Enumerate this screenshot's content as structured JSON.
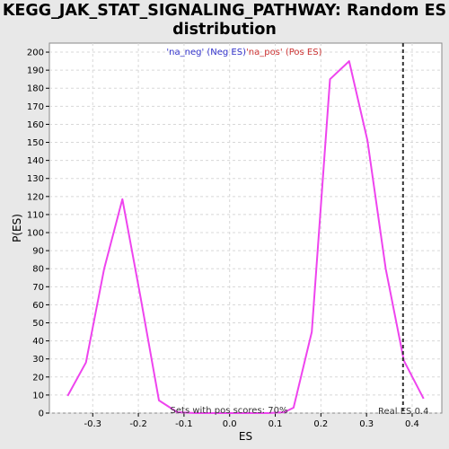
{
  "chart_data": {
    "type": "line",
    "title_line1": "KEGG_JAK_STAT_SIGNALING_PATHWAY: Random ES",
    "title_line2": "distribution",
    "xlabel": "ES",
    "ylabel": "P(ES)",
    "xlim": [
      -0.395,
      0.465
    ],
    "ylim": [
      0,
      205
    ],
    "x_ticks": [
      -0.3,
      -0.2,
      -0.1,
      0.0,
      0.1,
      0.2,
      0.3,
      0.4
    ],
    "x_tick_labels": [
      "-0.3",
      "-0.2",
      "-0.1",
      "0.0",
      "0.1",
      "0.2",
      "0.3",
      "0.4"
    ],
    "y_ticks": [
      0,
      10,
      20,
      30,
      40,
      50,
      60,
      70,
      80,
      90,
      100,
      110,
      120,
      130,
      140,
      150,
      160,
      170,
      180,
      190,
      200
    ],
    "grid": true,
    "legend": [
      {
        "label": "'na_neg' (Neg ES)",
        "color": "#3333cc"
      },
      {
        "label": "'na_pos' (Pos ES)",
        "color": "#cc3333"
      }
    ],
    "series": [
      {
        "color": "#ee44ee",
        "x": [
          -0.355,
          -0.315,
          -0.275,
          -0.235,
          -0.195,
          -0.155,
          -0.115,
          -0.075,
          -0.035,
          0.005,
          0.045,
          0.085,
          0.12,
          0.14,
          0.18,
          0.22,
          0.262,
          0.302,
          0.342,
          0.382,
          0.425
        ],
        "y": [
          9.5,
          28,
          80,
          118.5,
          64,
          7,
          0.5,
          0,
          0,
          0,
          0,
          0,
          0.5,
          3,
          45,
          185,
          195,
          151,
          80,
          29,
          8
        ]
      }
    ],
    "real_es": {
      "value": 0.38,
      "label": "Real ES 0.4"
    },
    "annotation": "Sets with pos scores: 70%"
  }
}
